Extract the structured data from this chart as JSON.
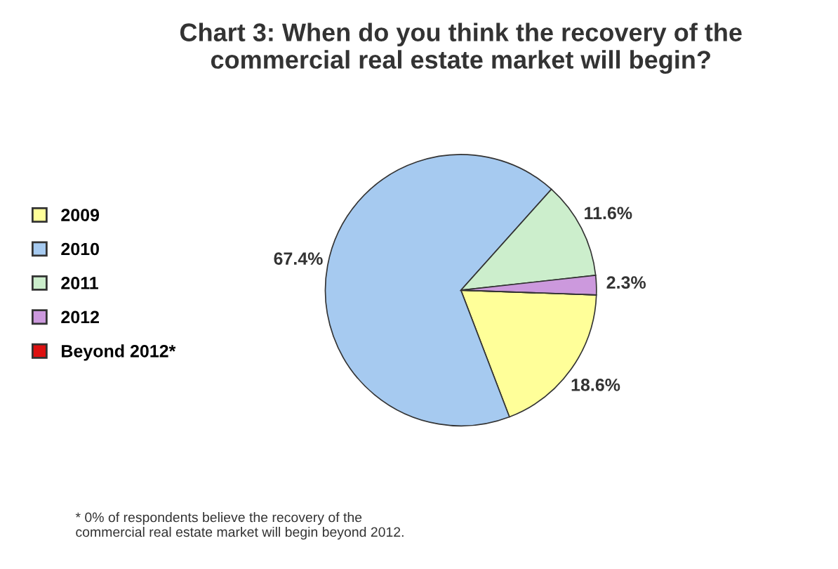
{
  "chart_data": {
    "type": "pie",
    "title": "Chart 3: When do you think the recovery of the\ncommercial real estate market will begin?",
    "categories": [
      "2009",
      "2010",
      "2011",
      "2012",
      "Beyond 2012*"
    ],
    "values": [
      18.6,
      67.4,
      11.6,
      2.3,
      0
    ],
    "colors": [
      "#ffff99",
      "#a6caf0",
      "#cceecc",
      "#cc99dd",
      "#dd1111"
    ],
    "value_labels": [
      "18.6%",
      "67.4%",
      "11.6%",
      "2.3%",
      null
    ],
    "legend": "left",
    "annotations": [
      "* 0% of respondents believe the recovery of the\ncommercial real estate market will begin beyond 2012."
    ]
  }
}
